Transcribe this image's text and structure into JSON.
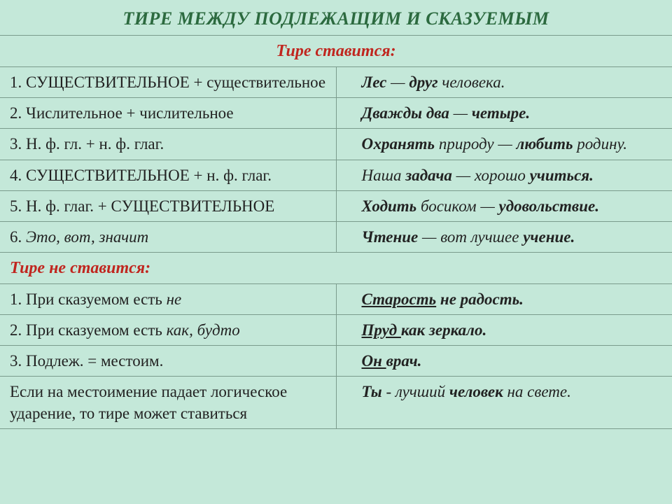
{
  "title": "ТИРЕ МЕЖДУ ПОДЛЕЖАЩИМ  И СКАЗУЕМЫМ",
  "section_yes": "Тире ставится:",
  "section_no": "Тире не ставится:",
  "rows_yes": [
    {
      "rule_parts": [
        {
          "t": "1. ",
          "cls": ""
        },
        {
          "t": "СУЩЕСТВИТЕЛЬНОЕ",
          "cls": ""
        },
        {
          "t": " + существительное",
          "cls": ""
        }
      ],
      "ex_parts": [
        {
          "t": "Лес",
          "cls": "part-bold"
        },
        {
          "t": " — ",
          "cls": "part-normal"
        },
        {
          "t": "друг ",
          "cls": "part-bold"
        },
        {
          "t": "человека.",
          "cls": "part-normal"
        }
      ]
    },
    {
      "rule_parts": [
        {
          "t": "2. Числительное + числительное",
          "cls": ""
        }
      ],
      "ex_parts": [
        {
          "t": "Дважды два",
          "cls": "part-bold"
        },
        {
          "t": " — ",
          "cls": "part-normal"
        },
        {
          "t": "четыре.",
          "cls": "part-bold"
        }
      ]
    },
    {
      "rule_parts": [
        {
          "t": "3. Н. ф. гл. + н. ф. глаг.",
          "cls": ""
        }
      ],
      "ex_parts": [
        {
          "t": "Охранять",
          "cls": "part-bold"
        },
        {
          "t": " природу — ",
          "cls": "part-normal"
        },
        {
          "t": "любить",
          "cls": "part-bold"
        },
        {
          "t": " родину.",
          "cls": "part-normal"
        }
      ]
    },
    {
      "rule_parts": [
        {
          "t": "4. ",
          "cls": ""
        },
        {
          "t": "СУЩЕСТВИТЕЛЬНОЕ",
          "cls": ""
        },
        {
          "t": " + н. ф. глаг.",
          "cls": ""
        }
      ],
      "ex_parts": [
        {
          "t": "Наша ",
          "cls": "part-normal"
        },
        {
          "t": "задача",
          "cls": "part-bold"
        },
        {
          "t": " — хорошо ",
          "cls": "part-normal"
        },
        {
          "t": "учиться.",
          "cls": "part-bold"
        }
      ]
    },
    {
      "rule_parts": [
        {
          "t": "5. Н. ф. глаг. + ",
          "cls": ""
        },
        {
          "t": "СУЩЕСТВИТЕЛЬНОЕ",
          "cls": ""
        }
      ],
      "ex_parts": [
        {
          "t": "Ходить",
          "cls": "part-bold"
        },
        {
          "t": " босиком — ",
          "cls": "part-normal"
        },
        {
          "t": "удовольствие.",
          "cls": "part-bold"
        }
      ]
    },
    {
      "rule_parts": [
        {
          "t": "6. ",
          "cls": ""
        },
        {
          "t": "Это, вот, значит",
          "cls": "part-rule-italic"
        }
      ],
      "ex_parts": [
        {
          "t": "Чтение",
          "cls": "part-bold"
        },
        {
          "t": " — вот лучшее ",
          "cls": "part-normal"
        },
        {
          "t": "учение.",
          "cls": "part-bold"
        }
      ]
    }
  ],
  "rows_no": [
    {
      "rule_parts": [
        {
          "t": "1. При сказуемом есть ",
          "cls": ""
        },
        {
          "t": "не",
          "cls": "part-rule-italic"
        }
      ],
      "ex_parts": [
        {
          "t": "Старость",
          "cls": "part-bold underline"
        },
        {
          "t": " не радость.",
          "cls": "part-bold"
        }
      ]
    },
    {
      "rule_parts": [
        {
          "t": "2. При сказуемом есть ",
          "cls": ""
        },
        {
          "t": "как, будто",
          "cls": "part-rule-italic"
        }
      ],
      "ex_parts": [
        {
          "t": " Пруд ",
          "cls": "part-bold underline"
        },
        {
          "t": "как зеркало.",
          "cls": "part-bold"
        }
      ]
    },
    {
      "rule_parts": [
        {
          "t": "3. Подлеж. = местоим.",
          "cls": ""
        }
      ],
      "ex_parts": [
        {
          "t": " Он ",
          "cls": "part-bold underline"
        },
        {
          "t": "врач.",
          "cls": "part-bold"
        }
      ]
    },
    {
      "rule_parts": [
        {
          "t": "Если на местоимение падает логическое  ударение, то тире может ставиться",
          "cls": ""
        }
      ],
      "ex_parts": [
        {
          "t": "Ты",
          "cls": "part-bold"
        },
        {
          "t": " - лучший ",
          "cls": "part-normal"
        },
        {
          "t": "человек",
          "cls": "part-bold"
        },
        {
          "t": " на свете.",
          "cls": "part-normal"
        }
      ]
    }
  ]
}
